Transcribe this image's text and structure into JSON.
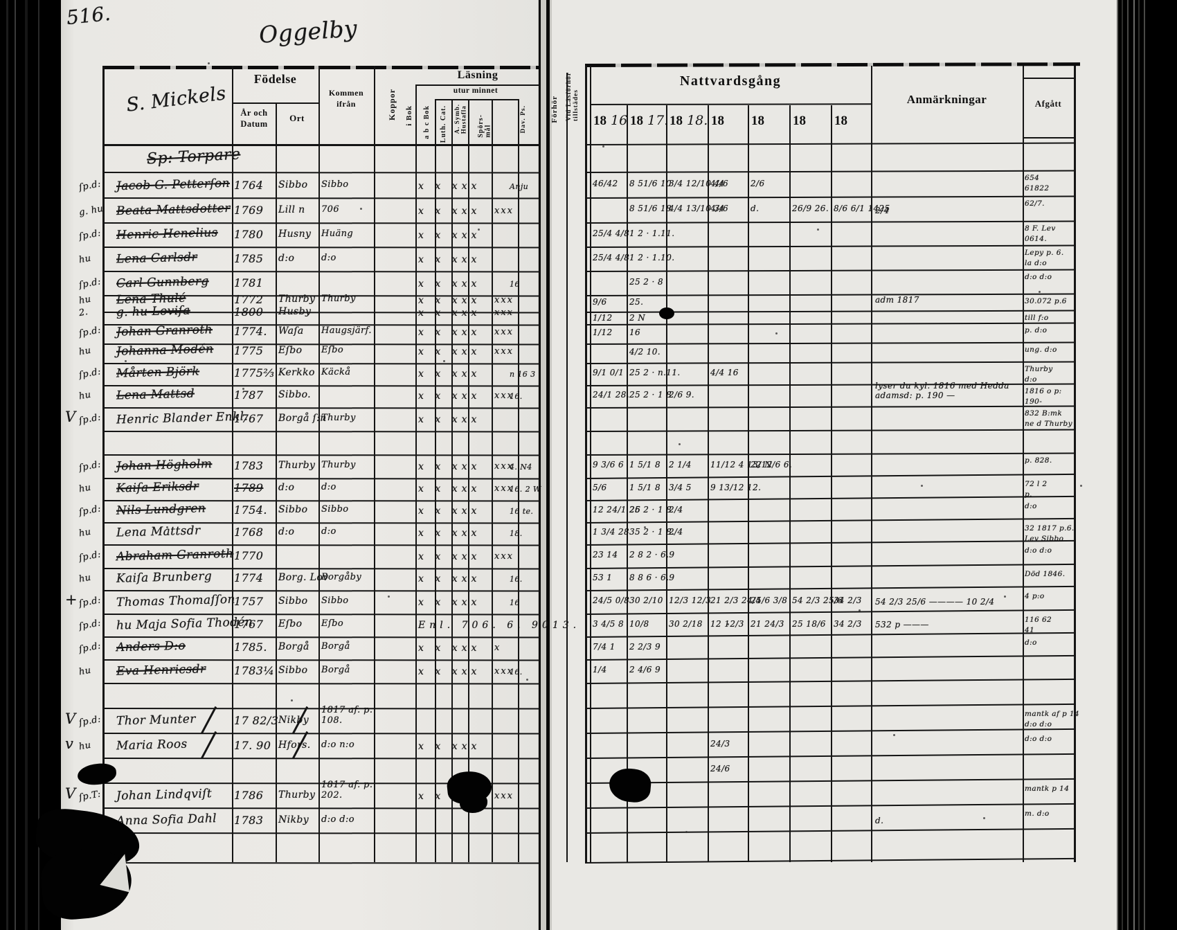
{
  "scan": {
    "folio": "516.",
    "title": "Oggelby"
  },
  "headers": {
    "left": {
      "name_script": "S. Mickels",
      "fodelse": "Födelse",
      "ar_och_datum": "År och\nDatum",
      "ort": "Ort",
      "kommen_ifran": "Kommen\nifrån",
      "koppor": "Koppor",
      "lasning": "Läsning",
      "i_bok": "i Bok",
      "utur_minnet": "utur minnet",
      "abc_bok": "a b c Bok",
      "luth_cat": "Luth. Cat.",
      "symb_hustafla": "A. Symb.\nHustafla",
      "sporsmal": "Spörs-\nmål",
      "dav_ps": "Dav. Ps.",
      "forhor": "Förhör",
      "vid_lasforhor": "Vid Läsförhör\ntillstädes"
    },
    "right": {
      "nattvardsgang": "Nattvardsgång",
      "years": [
        {
          "printed": "18",
          "hand": "16"
        },
        {
          "printed": "18",
          "hand": "17."
        },
        {
          "printed": "18",
          "hand": "18."
        },
        {
          "printed": "18",
          "hand": ""
        },
        {
          "printed": "18",
          "hand": ""
        },
        {
          "printed": "18",
          "hand": ""
        },
        {
          "printed": "18",
          "hand": ""
        }
      ],
      "anmarkningar": "Anmärkningar",
      "afgatt": "Afgått"
    }
  },
  "rows": [
    {
      "group": "Sp: Torpare"
    },
    {
      "margin": "ſp.d:",
      "name": "Jacob G. Petterſon",
      "struck": true,
      "year": "1764",
      "ort": "Sibbo",
      "ifran": "Sibbo",
      "read": "x  x  xxx",
      "forhor": "Anju",
      "comm": [
        "46/42",
        "8 51/6 10",
        "3/4 12/10 4/6",
        "4/4",
        "2/6"
      ],
      "afg": "654 / 61822"
    },
    {
      "margin": "g. hu",
      "name": "Beata Mattsdotter",
      "struck": true,
      "year": "1769",
      "ort": "Lill n",
      "ifran": "706",
      "read": "x  x  xxx",
      "read2": "xxx",
      "comm": [
        "",
        "8 51/6 18",
        "4/4 13/10 3/6",
        "4/4",
        "d.",
        "26/9 26.",
        "8/6 6/1 1425"
      ],
      "anm": "2/4",
      "afg": "62/7."
    },
    {
      "margin": "ſp.d:",
      "name": "Henric Henelius",
      "struck": true,
      "year": "1780",
      "ort": "Husny",
      "ifran": "Huäng",
      "read": "x  x  xxx",
      "comm": [
        "25/4 4/8",
        "1 2 · 1.11."
      ],
      "afg": "8 F. Lev / 0614."
    },
    {
      "margin": "hu",
      "name": "Lena Carlsdr",
      "struck": true,
      "year": "1785",
      "ort": "d:o",
      "ifran": "d:o",
      "read": "x  x  xxx",
      "comm": [
        "25/4 4/8",
        "1 2 · 1.10."
      ],
      "afg": "Lepy p. 6. / la d:o"
    },
    {
      "margin": "ſp.d:",
      "name": "Carl Gunnberg",
      "struck": true,
      "year": "1781",
      "ort": "",
      "ifran": "",
      "read": "x  x  xxx",
      "forhor": "16",
      "comm": [
        "",
        "25 2 · 8"
      ],
      "afg": "d:o  d:o"
    },
    {
      "margin": "hu",
      "name": "Lena Thulé",
      "struck": true,
      "year": "1772",
      "ort": "Thurby",
      "ifran": "Thurby",
      "read": "x  x  xxx",
      "read2": "xxx",
      "comm": [
        "9/6",
        "25."
      ],
      "anm": "adm 1817",
      "afg": "30.072 p.6"
    },
    {
      "margin": "2.",
      "name": "g. hu Loviſa",
      "struck": true,
      "year": "1800",
      "ort": "Husby",
      "ifran": "",
      "read": "x  x  xxx",
      "read2": "xxx",
      "comm": [
        "1/12",
        "2 N"
      ],
      "afg": "till f:o"
    },
    {
      "margin": "ſp.d:",
      "name": "Johan Granroth",
      "struck": true,
      "year": "1774.",
      "ort": "Waſa",
      "ifran": "Haugsjärf.",
      "read": "x  x  xxx",
      "read2": "xxx",
      "comm": [
        "1/12",
        "16"
      ],
      "afg": "p. d:o"
    },
    {
      "margin": "hu",
      "name": "Johanna Modén",
      "struck": true,
      "year": "1775",
      "ort": "Eſbo",
      "ifran": "Eſbo",
      "read": "x  x  xxx",
      "read2": "xxx",
      "comm": [
        "",
        "4/2 10."
      ],
      "afg": "ung. d:o"
    },
    {
      "margin": "ſp.d:",
      "name": "Mårten Björk",
      "struck": true,
      "year": "1775⅔",
      "ort": "Kerkko",
      "ifran": "Käckå",
      "read": "x  x  xxx",
      "forhor": "n 16 3",
      "comm": [
        "9/1 0/1",
        "25 2 · n.11.",
        "",
        "4/4 16"
      ],
      "afg": "Thurby / d:o"
    },
    {
      "margin": "hu",
      "name": "Lena Mattsd",
      "struck": true,
      "year": "1787",
      "ort": "Sibbo.",
      "ifran": "",
      "read": "x  x  xxx",
      "read2": "xxx",
      "forhor": "16.",
      "comm": [
        "24/1 28.",
        "25 2 · 1 8",
        "2/6 9."
      ],
      "anm": "lyser du kyl. 1816 med Hedda\nadamsd: p. 190 —",
      "afg": "1816 o p: / 190-"
    },
    {
      "check": "V",
      "margin": "ſp.d:",
      "name": "Henric Blander Enkl.",
      "year": "1767",
      "ort": "Borgå ſ:n",
      "ifran": "Thurby",
      "read": "x  x  xxx",
      "comm": [],
      "afg": "832 B:mk / ne d Thurby"
    },
    {},
    {
      "margin": "ſp.d:",
      "name": "Johan Högholm",
      "struck": true,
      "year": "1783",
      "ort": "Thurby",
      "ifran": "Thurby",
      "read": "x  x  xxx",
      "read2": "xxx",
      "forhor": "4. N4",
      "comm": [
        "9 3/6 6",
        "1 5/1 8",
        "2 1/4",
        "11/12 4 13/12",
        "22 N/6 6."
      ],
      "afg": "p. 828."
    },
    {
      "margin": "hu",
      "name": "Kaiſa Eriksdr",
      "struck": true,
      "year": "1789",
      "yearStruck": true,
      "ort": "d:o",
      "ifran": "d:o",
      "read": "x  x  xxx",
      "read2": "xxx",
      "forhor": "16. 2 W",
      "comm": [
        "5/6",
        "1 5/1 8",
        "3/4 5",
        "9 13/12 12."
      ],
      "afg": "72 l 2 / p."
    },
    {
      "margin": "ſp.d:",
      "name": "Nils Lundgren",
      "struck": true,
      "year": "1754.",
      "ort": "Sibbo",
      "ifran": "Sibbo",
      "read": "x  x  xxx",
      "forhor": "16 te.",
      "comm": [
        "12 24/1 26",
        "25 2 · 1 8",
        "2/4"
      ],
      "afg": "d:o"
    },
    {
      "margin": "hu",
      "name": "Lena Mattsdr",
      "year": "1768",
      "ort": "d:o",
      "ifran": "d:o",
      "read": "x  x  xxx",
      "forhor": "18.",
      "comm": [
        "1 3/4 28",
        "35 2 · 1 8.",
        "2/4"
      ],
      "afg": "32 1817 p.6. / Lev Sibbo"
    },
    {
      "margin": "ſp.d:",
      "name": "Abraham Granroth",
      "struck": true,
      "year": "1770",
      "ort": "",
      "ifran": "",
      "read": "x  x  xxx",
      "read2": "xxx",
      "comm": [
        "23 14",
        "2 8 2 · 6.9"
      ],
      "afg": "d:o  d:o"
    },
    {
      "margin": "hu",
      "name": "Kaiſa Brunberg",
      "year": "1774",
      "ort": "Borg. Lov",
      "ifran": "Borgåby",
      "read": "x  x  xxx",
      "forhor": "16.",
      "comm": [
        "53 1",
        "8 8 6 · 6.9"
      ],
      "afg": "Död 1846."
    },
    {
      "check": "+",
      "margin": "ſp.d:",
      "name": "Thomas Thomaſſon",
      "year": "1757",
      "ort": "Sibbo",
      "ifran": "Sibbo",
      "read": "x  x  xxx",
      "forhor": "16",
      "comm": [
        "24/5 0/8",
        "30 2/10",
        "12/3 12/3",
        "21 2/3 24/4",
        "25/6 3/8",
        "54 2/3 25/6",
        "34 2/3"
      ],
      "anm": "54 2/3 25/6 ———— 10 2/4",
      "afg": "4 p:o"
    },
    {
      "margin": "ſp.d:",
      "name": "hu Maja Sofia Thodén",
      "year": "1767",
      "ort": "Eſbo",
      "ifran": "Eſbo",
      "read": "Enl. 706. 6. 9013.",
      "comm": [
        "3 4/5 8",
        "10/8",
        "30 2/18",
        "12 12/3",
        "21 24/3",
        "25 18/6",
        "34 2/3"
      ],
      "anm": "532 p ———",
      "afg": "116 62 / 41"
    },
    {
      "margin": "ſp.d:",
      "name": "Anders D:o",
      "struck": true,
      "year": "1785.",
      "ort": "Borgå",
      "ifran": "Borgå",
      "read": "x  x  xxx",
      "read2": "x",
      "comm": [
        "7/4 1",
        "2 2/3 9"
      ],
      "afg": "d:o"
    },
    {
      "margin": "hu",
      "name": "Eva Henricsdr",
      "struck": true,
      "year": "1783¼",
      "ort": "Sibbo",
      "ifran": "Borgå",
      "read": "x  x  xxx",
      "read2": "xxx",
      "forhor": "16.",
      "comm": [
        "1/4",
        "2 4/6 9"
      ],
      "afg": ""
    },
    {},
    {
      "check": "V",
      "margin": "ſp.d:",
      "name": "Thor Munter",
      "slash": true,
      "year": "17 82/3",
      "ort": "Nikby",
      "ifran": "1817 af. p.\n108.",
      "comm": [],
      "afg": "mantk af p 14 / d:o  d:o"
    },
    {
      "check": "v",
      "margin": "hu",
      "name": "Maria Roos",
      "slash": true,
      "year": "17. 90",
      "ort": "Hfors.",
      "ifran": "d:o  n:o",
      "read": "x  x  xxx",
      "comm": [
        "",
        "",
        "",
        "24/3"
      ],
      "afg": "d:o  d:o"
    },
    {
      "comm": [
        "",
        "",
        "",
        "24/6"
      ]
    },
    {
      "check": "V",
      "margin": "ſp.T:",
      "name": "Johan Lindqviſt",
      "year": "1786",
      "ort": "Thurby",
      "ifran": "1817 af. p.\n202.",
      "read": "x  x  xxx",
      "read2": "xxx",
      "comm": [],
      "afg": "mantk p 14"
    },
    {
      "margin": "hu",
      "name": "Anna Sofia Dahl",
      "year": "1783",
      "ort": "Nikby",
      "ifran": "d:o  d:o",
      "comm": [],
      "anm": "d.",
      "afg": "m. d:o"
    },
    {}
  ]
}
